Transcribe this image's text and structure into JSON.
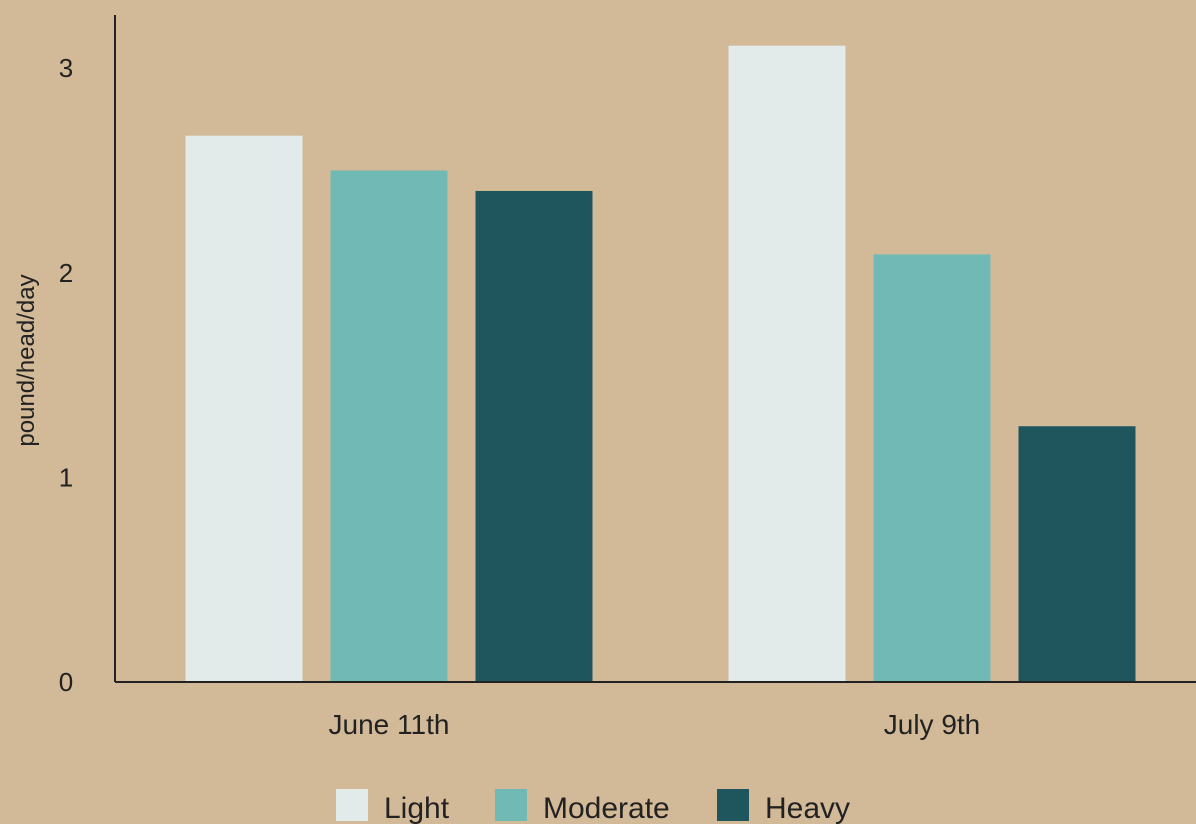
{
  "chart_data": {
    "type": "bar",
    "categories": [
      "June 11th",
      "July 9th"
    ],
    "series": [
      {
        "name": "Light",
        "values": [
          2.67,
          3.11
        ],
        "color": "#e2eaea"
      },
      {
        "name": "Moderate",
        "values": [
          2.5,
          2.09
        ],
        "color": "#71b9b5"
      },
      {
        "name": "Heavy",
        "values": [
          2.4,
          1.25
        ],
        "color": "#1f555d"
      }
    ],
    "ylabel": "pound/head/day",
    "xlabel": "",
    "ylim": [
      0,
      3.26
    ],
    "yticks": [
      0,
      1,
      2,
      3
    ],
    "grid": false,
    "legend_position": "bottom-center",
    "background": "#d2ba98",
    "axis_color": "#222222"
  }
}
